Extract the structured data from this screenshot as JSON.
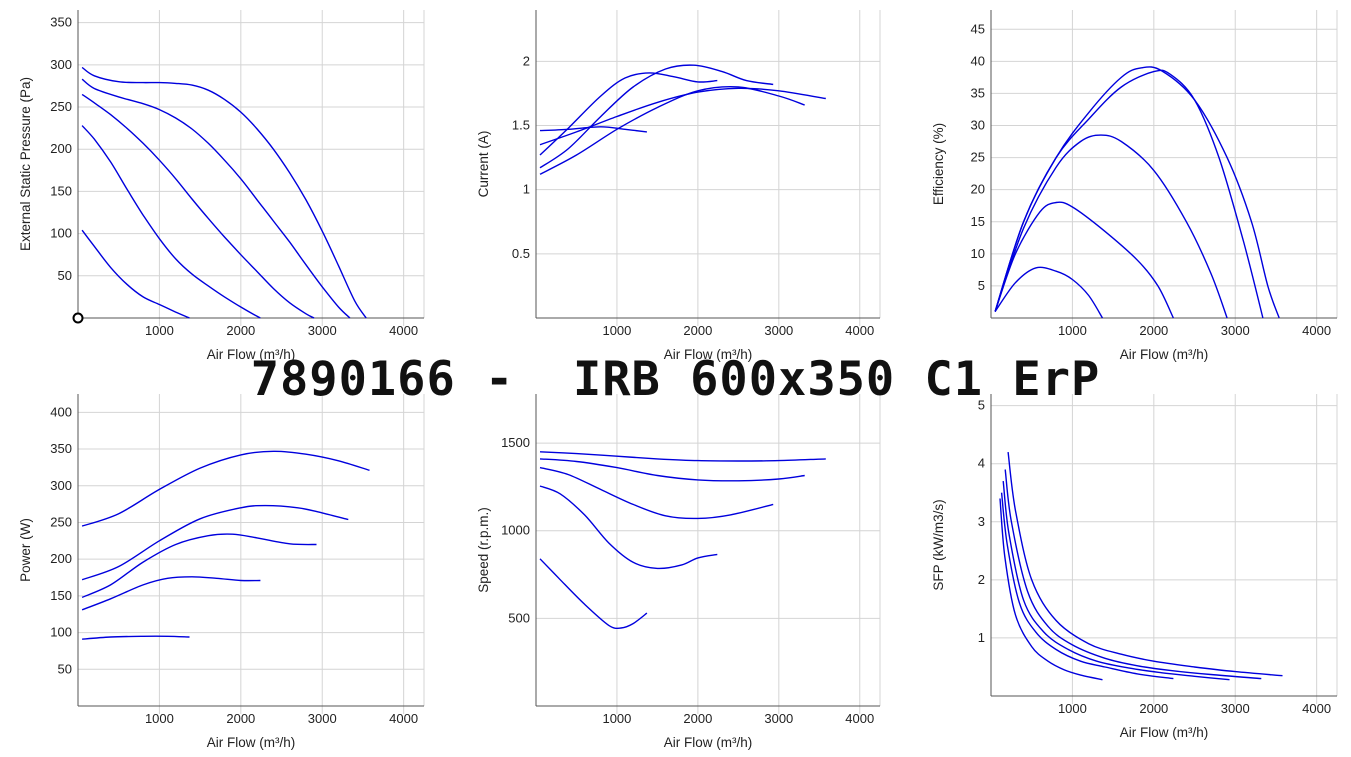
{
  "title": "7890166 -  IRB 600x350 C1 ErP",
  "series_color": "#0000dd",
  "chart_data": [
    {
      "type": "line",
      "id": "pressure",
      "xlabel": "Air Flow (m³/h)",
      "ylabel": "External Static Pressure (Pa)",
      "xlim": [
        0,
        4250
      ],
      "ylim": [
        0,
        365
      ],
      "xticks": [
        1000,
        2000,
        3000,
        4000
      ],
      "yticks": [
        50,
        100,
        150,
        200,
        250,
        300,
        350
      ],
      "grid": true,
      "origin_marker": true,
      "series": [
        {
          "x": [
            50,
            200,
            500,
            800,
            1000,
            1200,
            1400,
            1600,
            1800,
            2000,
            2200,
            2400,
            2600,
            2800,
            3000,
            3200,
            3400,
            3540
          ],
          "y": [
            297,
            287,
            280,
            279,
            279,
            278,
            276,
            270,
            259,
            244,
            224,
            200,
            172,
            140,
            103,
            62,
            20,
            0
          ]
        },
        {
          "x": [
            50,
            200,
            500,
            800,
            1000,
            1200,
            1400,
            1600,
            1800,
            2000,
            2200,
            2400,
            2600,
            2800,
            3000,
            3200,
            3340
          ],
          "y": [
            283,
            272,
            262,
            254,
            247,
            237,
            224,
            207,
            187,
            165,
            140,
            115,
            90,
            63,
            37,
            13,
            0
          ]
        },
        {
          "x": [
            50,
            200,
            400,
            600,
            800,
            1000,
            1200,
            1400,
            1600,
            1800,
            2000,
            2200,
            2400,
            2600,
            2800,
            2900
          ],
          "y": [
            265,
            255,
            241,
            225,
            207,
            187,
            165,
            141,
            118,
            96,
            75,
            55,
            35,
            18,
            5,
            0
          ]
        },
        {
          "x": [
            50,
            200,
            400,
            600,
            800,
            1000,
            1200,
            1400,
            1600,
            1800,
            2000,
            2200,
            2240
          ],
          "y": [
            228,
            212,
            185,
            153,
            122,
            94,
            70,
            52,
            38,
            25,
            13,
            2,
            0
          ]
        },
        {
          "x": [
            50,
            200,
            400,
            600,
            800,
            1000,
            1200,
            1370
          ],
          "y": [
            104,
            85,
            60,
            40,
            25,
            16,
            7,
            0
          ]
        }
      ]
    },
    {
      "type": "line",
      "id": "current",
      "xlabel": "Air Flow (m³/h)",
      "ylabel": "Current (A)",
      "xlim": [
        0,
        4250
      ],
      "ylim": [
        0,
        2.4
      ],
      "xticks": [
        1000,
        2000,
        3000,
        4000
      ],
      "yticks": [
        0.5,
        1,
        1.5,
        2
      ],
      "grid": true,
      "series": [
        {
          "x": [
            50,
            500,
            1000,
            1500,
            2000,
            2500,
            3000,
            3580
          ],
          "y": [
            1.35,
            1.45,
            1.57,
            1.68,
            1.76,
            1.79,
            1.77,
            1.71
          ]
        },
        {
          "x": [
            50,
            500,
            1000,
            1500,
            2000,
            2500,
            3000,
            3320
          ],
          "y": [
            1.12,
            1.27,
            1.47,
            1.64,
            1.77,
            1.8,
            1.73,
            1.66
          ]
        },
        {
          "x": [
            50,
            400,
            800,
            1200,
            1600,
            1950,
            2300,
            2600,
            2930
          ],
          "y": [
            1.17,
            1.32,
            1.57,
            1.8,
            1.94,
            1.97,
            1.92,
            1.85,
            1.82
          ]
        },
        {
          "x": [
            50,
            400,
            800,
            1100,
            1400,
            1700,
            2000,
            2240
          ],
          "y": [
            1.27,
            1.48,
            1.73,
            1.87,
            1.91,
            1.88,
            1.84,
            1.85
          ]
        },
        {
          "x": [
            50,
            400,
            800,
            1100,
            1370
          ],
          "y": [
            1.46,
            1.47,
            1.49,
            1.47,
            1.45
          ]
        }
      ]
    },
    {
      "type": "line",
      "id": "efficiency",
      "xlabel": "Air Flow (m³/h)",
      "ylabel": "Efficiency (%)",
      "xlim": [
        0,
        4250
      ],
      "ylim": [
        0,
        48
      ],
      "xticks": [
        1000,
        2000,
        3000,
        4000
      ],
      "yticks": [
        5,
        10,
        15,
        20,
        25,
        30,
        35,
        40,
        45
      ],
      "grid": true,
      "series": [
        {
          "x": [
            50,
            400,
            800,
            1200,
            1600,
            1850,
            2100,
            2500,
            2900,
            3200,
            3400,
            3540
          ],
          "y": [
            1,
            15,
            25,
            32,
            37.5,
            39,
            38.5,
            34,
            25,
            15,
            5,
            0
          ]
        },
        {
          "x": [
            50,
            400,
            800,
            1200,
            1600,
            2000,
            2200,
            2500,
            2800,
            3100,
            3340
          ],
          "y": [
            1,
            15,
            25,
            31,
            36,
            38.4,
            38,
            34,
            25,
            12,
            0
          ]
        },
        {
          "x": [
            50,
            400,
            800,
            1100,
            1350,
            1600,
            2000,
            2400,
            2700,
            2900
          ],
          "y": [
            1,
            14,
            23.5,
            27.5,
            28.5,
            27.5,
            23,
            15,
            7,
            0
          ]
        },
        {
          "x": [
            50,
            300,
            600,
            800,
            1000,
            1400,
            1800,
            2050,
            2240
          ],
          "y": [
            1,
            10,
            16.5,
            18,
            17.3,
            13.5,
            9,
            5,
            0
          ]
        },
        {
          "x": [
            50,
            300,
            550,
            800,
            1000,
            1200,
            1370
          ],
          "y": [
            1,
            5.5,
            7.8,
            7.3,
            6,
            3.5,
            0
          ]
        }
      ]
    },
    {
      "type": "line",
      "id": "power",
      "xlabel": "Air Flow (m³/h)",
      "ylabel": "Power (W)",
      "xlim": [
        0,
        4250
      ],
      "ylim": [
        0,
        425
      ],
      "xticks": [
        1000,
        2000,
        3000,
        4000
      ],
      "yticks": [
        50,
        100,
        150,
        200,
        250,
        300,
        350,
        400
      ],
      "grid": true,
      "series": [
        {
          "x": [
            50,
            500,
            1000,
            1500,
            2000,
            2400,
            2800,
            3200,
            3580
          ],
          "y": [
            245,
            262,
            295,
            324,
            342,
            347,
            343,
            334,
            321
          ]
        },
        {
          "x": [
            50,
            500,
            1000,
            1500,
            2000,
            2300,
            2700,
            3000,
            3320
          ],
          "y": [
            172,
            190,
            225,
            255,
            270,
            273,
            270,
            263,
            254
          ]
        },
        {
          "x": [
            50,
            400,
            800,
            1200,
            1600,
            1900,
            2200,
            2600,
            2930
          ],
          "y": [
            148,
            165,
            196,
            220,
            232,
            234,
            229,
            221,
            220
          ]
        },
        {
          "x": [
            50,
            400,
            800,
            1100,
            1400,
            1700,
            2000,
            2240
          ],
          "y": [
            131,
            146,
            165,
            174,
            176,
            174,
            171,
            171
          ]
        },
        {
          "x": [
            50,
            400,
            800,
            1100,
            1370
          ],
          "y": [
            91,
            94,
            95,
            95,
            94
          ]
        }
      ]
    },
    {
      "type": "line",
      "id": "speed",
      "xlabel": "Air Flow (m³/h)",
      "ylabel": "Speed (r.p.m.)",
      "xlim": [
        0,
        4250
      ],
      "ylim": [
        0,
        1780
      ],
      "xticks": [
        1000,
        2000,
        3000,
        4000
      ],
      "yticks": [
        500,
        1000,
        1500
      ],
      "grid": true,
      "series": [
        {
          "x": [
            50,
            500,
            1000,
            1500,
            2000,
            2500,
            3000,
            3580
          ],
          "y": [
            1450,
            1440,
            1425,
            1410,
            1400,
            1398,
            1400,
            1410
          ]
        },
        {
          "x": [
            50,
            500,
            1000,
            1500,
            2000,
            2500,
            3000,
            3320
          ],
          "y": [
            1410,
            1395,
            1360,
            1315,
            1290,
            1285,
            1295,
            1315
          ]
        },
        {
          "x": [
            50,
            400,
            800,
            1200,
            1600,
            2000,
            2400,
            2930
          ],
          "y": [
            1360,
            1320,
            1235,
            1150,
            1085,
            1070,
            1090,
            1150
          ]
        },
        {
          "x": [
            50,
            300,
            600,
            900,
            1200,
            1500,
            1800,
            2000,
            2240
          ],
          "y": [
            1255,
            1210,
            1090,
            930,
            820,
            785,
            805,
            845,
            865
          ]
        },
        {
          "x": [
            50,
            300,
            600,
            900,
            1050,
            1200,
            1370
          ],
          "y": [
            840,
            720,
            580,
            460,
            445,
            470,
            530
          ]
        }
      ]
    },
    {
      "type": "line",
      "id": "sfp",
      "xlabel": "Air Flow (m³/h)",
      "ylabel": "SFP (kW/m3/s)",
      "xlim": [
        0,
        4250
      ],
      "ylim": [
        0,
        5.2
      ],
      "xticks": [
        1000,
        2000,
        3000,
        4000
      ],
      "yticks": [
        1,
        2,
        3,
        4,
        5
      ],
      "grid": true,
      "series": [
        {
          "x": [
            210,
            300,
            500,
            800,
            1200,
            1600,
            2000,
            2500,
            3000,
            3580
          ],
          "y": [
            4.2,
            3.2,
            2.0,
            1.3,
            0.9,
            0.72,
            0.6,
            0.5,
            0.42,
            0.35
          ]
        },
        {
          "x": [
            175,
            250,
            450,
            700,
            1000,
            1400,
            1800,
            2200,
            2700,
            3320
          ],
          "y": [
            3.9,
            3.0,
            1.8,
            1.2,
            0.88,
            0.65,
            0.52,
            0.44,
            0.37,
            0.3
          ]
        },
        {
          "x": [
            150,
            220,
            400,
            650,
            950,
            1300,
            1700,
            2100,
            2500,
            2930
          ],
          "y": [
            3.7,
            2.8,
            1.65,
            1.1,
            0.8,
            0.6,
            0.48,
            0.4,
            0.34,
            0.28
          ]
        },
        {
          "x": [
            130,
            200,
            350,
            550,
            800,
            1100,
            1400,
            1800,
            2240
          ],
          "y": [
            3.5,
            2.6,
            1.6,
            1.1,
            0.8,
            0.6,
            0.5,
            0.38,
            0.3
          ]
        },
        {
          "x": [
            110,
            170,
            300,
            500,
            700,
            900,
            1100,
            1370
          ],
          "y": [
            3.4,
            2.4,
            1.4,
            0.85,
            0.6,
            0.45,
            0.36,
            0.28
          ]
        }
      ]
    }
  ]
}
